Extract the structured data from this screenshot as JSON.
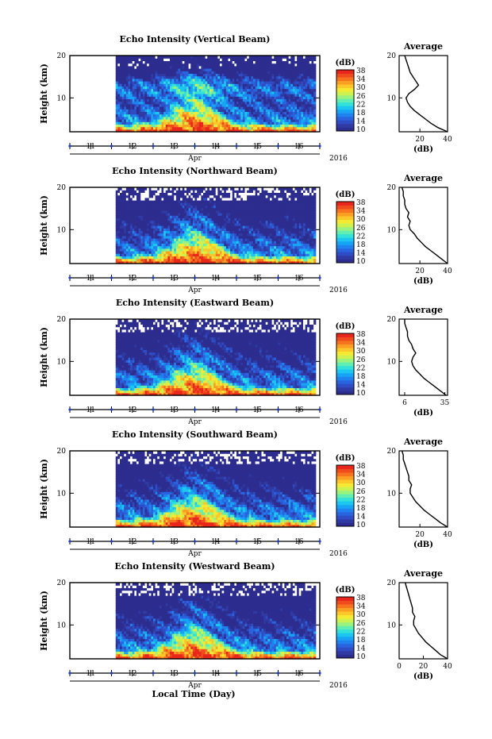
{
  "figure": {
    "bottom_xlabel": "Local Time (Day)",
    "year_label": "2016",
    "month_label": "Apr"
  },
  "colorbar": {
    "unit": "(dB)",
    "tick_labels": [
      "38",
      "34",
      "30",
      "26",
      "22",
      "18",
      "14",
      "10"
    ],
    "colors": [
      "#2c2d8e",
      "#2f3aa3",
      "#2f4cc4",
      "#2a63de",
      "#1f82ee",
      "#18a4f4",
      "#1dc6f0",
      "#33e1d8",
      "#62eeb0",
      "#9cf27e",
      "#cdf250",
      "#f4ea34",
      "#fbc72a",
      "#fb9e24",
      "#f6731f",
      "#ef4b1c",
      "#e9261b"
    ]
  },
  "chart_data": [
    {
      "type": "heatmap",
      "title": "Echo Intensity (Vertical Beam)",
      "ylabel": "Height (km)",
      "xlabel": "Apr",
      "ylim": [
        2,
        20
      ],
      "xlim": [
        10.5,
        16.5
      ],
      "data_start_day": 11.6,
      "data_end_day": 16.4,
      "y_ticks": [
        10,
        20
      ],
      "x_ticks": [
        11,
        12,
        13,
        14,
        15,
        16
      ],
      "x_tick_labels": [
        "11",
        "12",
        "13",
        "14",
        "15",
        "16"
      ],
      "zlim": [
        10,
        38
      ],
      "zunit": "(dB)",
      "profile": {
        "title": "Average",
        "xlabel": "(dB)",
        "xlim": [
          5,
          40
        ],
        "x_ticks": [
          20,
          40
        ],
        "y_ticks": [
          10,
          20
        ],
        "height": [
          2,
          3,
          4,
          5,
          6,
          7,
          8,
          9,
          10,
          11,
          12,
          13,
          14,
          15,
          16,
          17,
          18,
          19,
          20
        ],
        "values": [
          40,
          33,
          28,
          24,
          20,
          16,
          13,
          11,
          10,
          12,
          16,
          19,
          17,
          15,
          13,
          12,
          11,
          10,
          9
        ]
      }
    },
    {
      "type": "heatmap",
      "title": "Echo Intensity (Northward Beam)",
      "ylabel": "Height (km)",
      "xlabel": "Apr",
      "ylim": [
        2,
        20
      ],
      "xlim": [
        10.5,
        16.5
      ],
      "data_start_day": 11.6,
      "data_end_day": 16.4,
      "y_ticks": [
        10,
        20
      ],
      "x_ticks": [
        11,
        12,
        13,
        14,
        15,
        16
      ],
      "x_tick_labels": [
        "11",
        "12",
        "13",
        "14",
        "15",
        "16"
      ],
      "zlim": [
        10,
        38
      ],
      "zunit": "(dB)",
      "profile": {
        "title": "Average",
        "xlabel": "(dB)",
        "xlim": [
          5,
          40
        ],
        "x_ticks": [
          20,
          40
        ],
        "y_ticks": [
          10,
          20
        ],
        "height": [
          2,
          3,
          4,
          5,
          6,
          7,
          8,
          9,
          10,
          11,
          12,
          13,
          14,
          15,
          16,
          17,
          18,
          19,
          20
        ],
        "values": [
          40,
          36,
          32,
          28,
          24,
          21,
          18,
          16,
          13,
          12,
          13,
          11,
          12,
          10,
          9,
          9,
          8,
          8,
          7
        ]
      }
    },
    {
      "type": "heatmap",
      "title": "Echo Intensity (Eastward Beam)",
      "ylabel": "Height (km)",
      "xlabel": "Apr",
      "ylim": [
        2,
        20
      ],
      "xlim": [
        10.5,
        16.5
      ],
      "data_start_day": 11.6,
      "data_end_day": 16.4,
      "y_ticks": [
        10,
        20
      ],
      "x_ticks": [
        11,
        12,
        13,
        14,
        15,
        16
      ],
      "x_tick_labels": [
        "11",
        "12",
        "13",
        "14",
        "15",
        "16"
      ],
      "zlim": [
        10,
        38
      ],
      "zunit": "(dB)",
      "profile": {
        "title": "Average",
        "xlabel": "(dB)",
        "xlim": [
          2,
          37
        ],
        "x_ticks": [
          6,
          35
        ],
        "y_ticks": [
          10,
          20
        ],
        "height": [
          2,
          3,
          4,
          5,
          6,
          7,
          8,
          9,
          10,
          11,
          12,
          13,
          14,
          15,
          16,
          17,
          18,
          19,
          20
        ],
        "values": [
          36,
          32,
          28,
          24,
          20,
          17,
          14,
          12,
          11,
          12,
          14,
          12,
          11,
          9,
          8,
          8,
          7,
          6,
          6
        ]
      }
    },
    {
      "type": "heatmap",
      "title": "Echo Intensity (Southward Beam)",
      "ylabel": "Height (km)",
      "xlabel": "Apr",
      "ylim": [
        2,
        20
      ],
      "xlim": [
        10.5,
        16.5
      ],
      "data_start_day": 11.6,
      "data_end_day": 16.4,
      "y_ticks": [
        10,
        20
      ],
      "x_ticks": [
        11,
        12,
        13,
        14,
        15,
        16
      ],
      "x_tick_labels": [
        "11",
        "12",
        "13",
        "14",
        "15",
        "16"
      ],
      "zlim": [
        10,
        38
      ],
      "zunit": "(dB)",
      "profile": {
        "title": "Average",
        "xlabel": "(dB)",
        "xlim": [
          5,
          40
        ],
        "x_ticks": [
          20,
          40
        ],
        "y_ticks": [
          10,
          20
        ],
        "height": [
          2,
          3,
          4,
          5,
          6,
          7,
          8,
          9,
          10,
          11,
          12,
          13,
          14,
          15,
          16,
          17,
          18,
          19,
          20
        ],
        "values": [
          40,
          35,
          31,
          27,
          23,
          20,
          17,
          15,
          13,
          13,
          14,
          12,
          12,
          11,
          10,
          9,
          8,
          8,
          7
        ]
      }
    },
    {
      "type": "heatmap",
      "title": "Echo Intensity (Westward Beam)",
      "ylabel": "Height (km)",
      "xlabel": "Apr",
      "ylim": [
        2,
        20
      ],
      "xlim": [
        10.5,
        16.5
      ],
      "data_start_day": 11.6,
      "data_end_day": 16.4,
      "y_ticks": [
        10,
        20
      ],
      "x_ticks": [
        11,
        12,
        13,
        14,
        15,
        16
      ],
      "x_tick_labels": [
        "11",
        "12",
        "13",
        "14",
        "15",
        "16"
      ],
      "zlim": [
        10,
        38
      ],
      "zunit": "(dB)",
      "profile": {
        "title": "Average",
        "xlabel": "(dB)",
        "xlim": [
          0,
          40
        ],
        "x_ticks": [
          0,
          20,
          40
        ],
        "y_ticks": [
          10,
          20
        ],
        "height": [
          2,
          3,
          4,
          5,
          6,
          7,
          8,
          9,
          10,
          11,
          12,
          13,
          14,
          15,
          16,
          17,
          18,
          19,
          20
        ],
        "values": [
          40,
          34,
          30,
          26,
          22,
          19,
          16,
          14,
          12,
          12,
          13,
          11,
          11,
          10,
          9,
          8,
          7,
          6,
          5
        ]
      }
    }
  ]
}
